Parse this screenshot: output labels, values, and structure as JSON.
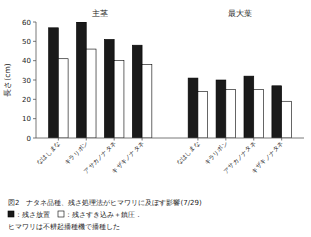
{
  "chart_data": {
    "type": "bar",
    "caption": "図2　ナタネ品種、残さ処理法がヒマワリに及ぼす影響(7/29)",
    "note": "ヒマワリは不耕起播種機で播種した",
    "groups": [
      "主茎",
      "最大葉"
    ],
    "categories": [
      "なはしまな",
      "キラリボン",
      "アサカノナタネ",
      "キザキノナタネ",
      "なはしまな",
      "キラリボン",
      "アサカノナタネ",
      "キザキノナタネ"
    ],
    "series": [
      {
        "name": "：残さ放置",
        "color": "#1a1a1a",
        "values": [
          57,
          60,
          51,
          48,
          31,
          30,
          32,
          27
        ]
      },
      {
        "name": "：残さすき込み＋鎮圧．",
        "color": "#ffffff",
        "values": [
          41,
          46,
          40,
          38,
          24,
          25,
          25,
          19
        ]
      }
    ],
    "ylabel": "長さ(cm)",
    "ylim": [
      0,
      60
    ],
    "yticks": [
      0,
      10,
      20,
      30,
      40,
      50,
      60
    ],
    "grid": false,
    "legend": "bottom"
  }
}
